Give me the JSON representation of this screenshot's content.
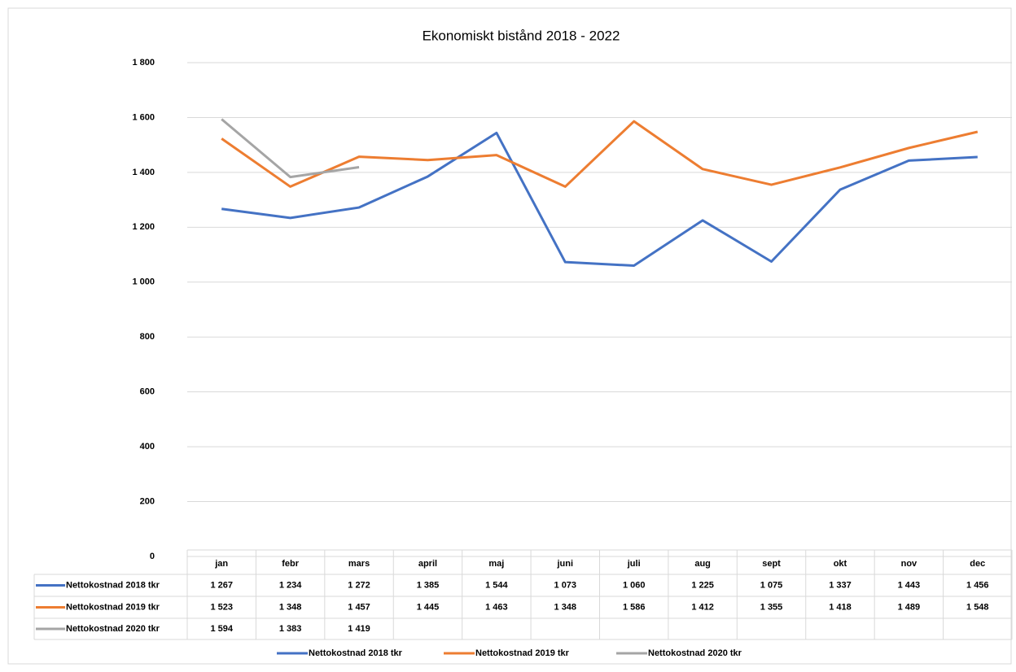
{
  "chart_data": {
    "type": "line",
    "title": "Ekonomiskt bistånd 2018 - 2022",
    "categories": [
      "jan",
      "febr",
      "mars",
      "april",
      "maj",
      "juni",
      "juli",
      "aug",
      "sept",
      "okt",
      "nov",
      "dec"
    ],
    "series": [
      {
        "name": "Nettokostnad 2018 tkr",
        "color": "#4472c4",
        "values": [
          1267,
          1234,
          1272,
          1385,
          1544,
          1073,
          1060,
          1225,
          1075,
          1337,
          1443,
          1456
        ],
        "value_labels": [
          "1 267",
          "1 234",
          "1 272",
          "1 385",
          "1 544",
          "1 073",
          "1 060",
          "1 225",
          "1 075",
          "1 337",
          "1 443",
          "1 456"
        ]
      },
      {
        "name": "Nettokostnad 2019 tkr",
        "color": "#ed7d31",
        "values": [
          1523,
          1348,
          1457,
          1445,
          1463,
          1348,
          1586,
          1412,
          1355,
          1418,
          1489,
          1548
        ],
        "value_labels": [
          "1 523",
          "1 348",
          "1 457",
          "1 445",
          "1 463",
          "1 348",
          "1 586",
          "1 412",
          "1 355",
          "1 418",
          "1 489",
          "1 548"
        ]
      },
      {
        "name": "Nettokostnad 2020 tkr",
        "color": "#a5a5a5",
        "values": [
          1594,
          1383,
          1419,
          null,
          null,
          null,
          null,
          null,
          null,
          null,
          null,
          null
        ],
        "value_labels": [
          "1 594",
          "1 383",
          "1 419",
          null,
          null,
          null,
          null,
          null,
          null,
          null,
          null,
          null
        ]
      }
    ],
    "ylim": [
      0,
      1800
    ],
    "yticks": [
      0,
      200,
      400,
      600,
      800,
      {
        "value": 1000,
        "label": "1 000"
      },
      {
        "value": 1200,
        "label": "1 200"
      },
      {
        "value": 1400,
        "label": "1 400"
      },
      {
        "value": 1600,
        "label": "1 600"
      },
      {
        "value": 1800,
        "label": "1 800"
      }
    ],
    "grid": true
  }
}
